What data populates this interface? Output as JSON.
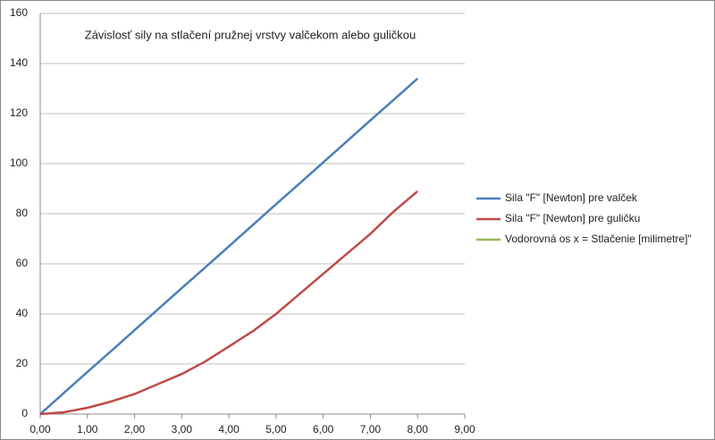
{
  "chart_data": {
    "type": "line",
    "title": "Závislosť sily na stlačení pružnej vrstvy valčekom alebo guličkou",
    "x": [
      0,
      0.5,
      1,
      1.5,
      2,
      2.5,
      3,
      3.5,
      4,
      4.5,
      5,
      5.5,
      6,
      6.5,
      7,
      7.5,
      8
    ],
    "series": [
      {
        "name": "Sila \"F\" [Newton] pre valček",
        "color": "#4a7ebb",
        "values": [
          0,
          8.4,
          16.8,
          25.1,
          33.5,
          41.9,
          50.3,
          58.6,
          67,
          75.4,
          83.8,
          92.1,
          100.5,
          108.9,
          117.3,
          125.6,
          134
        ]
      },
      {
        "name": "Sila \"F\" [Newton] pre guličku",
        "color": "#be4b48",
        "values": [
          0,
          0.7,
          2.5,
          5,
          8,
          12,
          16,
          21,
          27,
          33,
          40,
          48,
          56,
          64,
          72,
          81,
          89
        ]
      },
      {
        "name": "Vodorovná os x = Stlačenie [milimetre]\"",
        "color": "#98b954",
        "values": [
          null,
          null,
          null,
          null,
          null,
          null,
          null,
          null,
          null,
          null,
          null,
          null,
          null,
          null,
          null,
          null,
          null
        ]
      }
    ],
    "xlim": [
      0,
      9
    ],
    "xticks": [
      {
        "value": 0,
        "label": "0,00"
      },
      {
        "value": 1,
        "label": "1,00"
      },
      {
        "value": 2,
        "label": "2,00"
      },
      {
        "value": 3,
        "label": "3,00"
      },
      {
        "value": 4,
        "label": "4,00"
      },
      {
        "value": 5,
        "label": "5,00"
      },
      {
        "value": 6,
        "label": "6,00"
      },
      {
        "value": 7,
        "label": "7,00"
      },
      {
        "value": 8,
        "label": "8,00"
      },
      {
        "value": 9,
        "label": "9,00"
      }
    ],
    "ylim": [
      0,
      160
    ],
    "yticks": [
      0,
      20,
      40,
      60,
      80,
      100,
      120,
      140,
      160
    ],
    "grid": true,
    "legend": "right"
  }
}
